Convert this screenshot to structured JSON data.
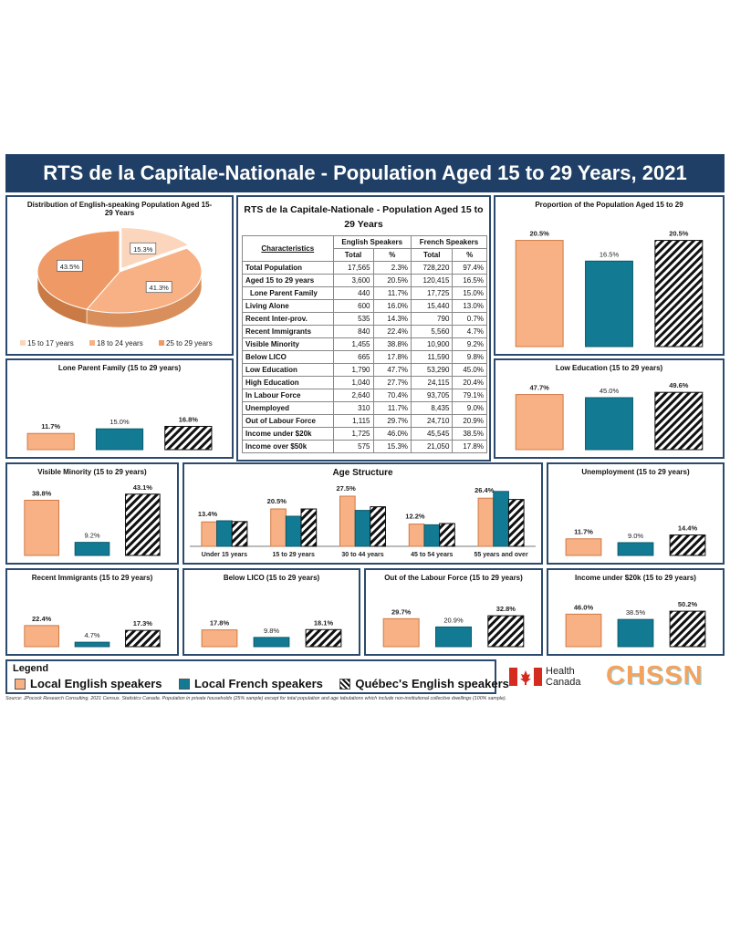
{
  "title": "RTS de la Capitale-Nationale - Population Aged 15 to 29 Years, 2021",
  "colors": {
    "english": "#f7b184",
    "french": "#127a93",
    "quebec": "hatch",
    "frame": "#2c4a6e",
    "header": "#1f3f66"
  },
  "pie": {
    "title": "Distribution of English-speaking  Population Aged 15-29 Years",
    "slices": [
      {
        "label": "15 to 17 years",
        "value": 15.3,
        "display": "15.3%",
        "color": "#fbd6bd"
      },
      {
        "label": "18 to 24 years",
        "value": 41.3,
        "display": "41.3%",
        "color": "#f7b184"
      },
      {
        "label": "25 to 29 years",
        "value": 43.5,
        "display": "43.5%",
        "color": "#ef9a66"
      }
    ]
  },
  "table": {
    "title": "RTS de la Capitale-Nationale - Population Aged 15 to 29 Years",
    "group_headers": [
      "English Speakers",
      "French Speakers"
    ],
    "characteristics_label": "Characteristics",
    "subheaders": [
      "Total",
      "%",
      "Total",
      "%"
    ],
    "rows": [
      {
        "label": "Total Population",
        "en_total": "17,565",
        "en_pct": "2.3%",
        "fr_total": "728,220",
        "fr_pct": "97.4%",
        "indent": false
      },
      {
        "label": "Aged 15 to 29 years",
        "en_total": "3,600",
        "en_pct": "20.5%",
        "fr_total": "120,415",
        "fr_pct": "16.5%",
        "indent": false
      },
      {
        "label": "Lone Parent Family",
        "en_total": "440",
        "en_pct": "11.7%",
        "fr_total": "17,725",
        "fr_pct": "15.0%",
        "indent": true
      },
      {
        "label": "Living Alone",
        "en_total": "600",
        "en_pct": "16.0%",
        "fr_total": "15,440",
        "fr_pct": "13.0%",
        "indent": false
      },
      {
        "label": "Recent Inter-prov.",
        "en_total": "535",
        "en_pct": "14.3%",
        "fr_total": "790",
        "fr_pct": "0.7%",
        "indent": false
      },
      {
        "label": "Recent Immigrants",
        "en_total": "840",
        "en_pct": "22.4%",
        "fr_total": "5,560",
        "fr_pct": "4.7%",
        "indent": false
      },
      {
        "label": "Visible Minority",
        "en_total": "1,455",
        "en_pct": "38.8%",
        "fr_total": "10,900",
        "fr_pct": "9.2%",
        "indent": false
      },
      {
        "label": "Below LICO",
        "en_total": "665",
        "en_pct": "17.8%",
        "fr_total": "11,590",
        "fr_pct": "9.8%",
        "indent": false
      },
      {
        "label": "Low Education",
        "en_total": "1,790",
        "en_pct": "47.7%",
        "fr_total": "53,290",
        "fr_pct": "45.0%",
        "indent": false
      },
      {
        "label": "High Education",
        "en_total": "1,040",
        "en_pct": "27.7%",
        "fr_total": "24,115",
        "fr_pct": "20.4%",
        "indent": false
      },
      {
        "label": "In Labour Force",
        "en_total": "2,640",
        "en_pct": "70.4%",
        "fr_total": "93,705",
        "fr_pct": "79.1%",
        "indent": false
      },
      {
        "label": "Unemployed",
        "en_total": "310",
        "en_pct": "11.7%",
        "fr_total": "8,435",
        "fr_pct": "9.0%",
        "indent": false
      },
      {
        "label": "Out of Labour Force",
        "en_total": "1,115",
        "en_pct": "29.7%",
        "fr_total": "24,710",
        "fr_pct": "20.9%",
        "indent": false
      },
      {
        "label": "Income under $20k",
        "en_total": "1,725",
        "en_pct": "46.0%",
        "fr_total": "45,545",
        "fr_pct": "38.5%",
        "indent": false
      },
      {
        "label": "Income over $50k",
        "en_total": "575",
        "en_pct": "15.3%",
        "fr_total": "21,050",
        "fr_pct": "17.8%",
        "indent": false
      }
    ]
  },
  "chart_data": [
    {
      "id": "proportion",
      "type": "bar",
      "title": "Proportion of the Population  Aged 15 to 29",
      "max": 25,
      "values": [
        20.5,
        16.5,
        20.5
      ],
      "labels": [
        "20.5%",
        "16.5%",
        "20.5%"
      ]
    },
    {
      "id": "lone",
      "type": "bar",
      "title": "Lone Parent Family (15 to 29 years)",
      "max": 50,
      "values": [
        11.7,
        15.0,
        16.8
      ],
      "labels": [
        "11.7%",
        "15.0%",
        "16.8%"
      ]
    },
    {
      "id": "lowedu",
      "type": "bar",
      "title": "Low Education (15 to 29 years)",
      "max": 60,
      "values": [
        47.7,
        45.0,
        49.6
      ],
      "labels": [
        "47.7%",
        "45.0%",
        "49.6%"
      ]
    },
    {
      "id": "vismin",
      "type": "bar",
      "title": "Visible Minority (15 to 29 years)",
      "max": 50,
      "values": [
        38.8,
        9.2,
        43.1
      ],
      "labels": [
        "38.8%",
        "9.2%",
        "43.1%"
      ]
    },
    {
      "id": "unemp",
      "type": "bar",
      "title": "Unemployment (15 to 29 years)",
      "max": 50,
      "values": [
        11.7,
        9.0,
        14.4
      ],
      "labels": [
        "11.7%",
        "9.0%",
        "14.4%"
      ]
    },
    {
      "id": "recimm",
      "type": "bar",
      "title": "Recent Immigrants (15 to 29 years)",
      "max": 60,
      "values": [
        22.4,
        4.7,
        17.3
      ],
      "labels": [
        "22.4%",
        "4.7%",
        "17.3%"
      ]
    },
    {
      "id": "lico",
      "type": "bar",
      "title": "Below LICO (15 to 29 years)",
      "max": 60,
      "values": [
        17.8,
        9.8,
        18.1
      ],
      "labels": [
        "17.8%",
        "9.8%",
        "18.1%"
      ]
    },
    {
      "id": "outlab",
      "type": "bar",
      "title": "Out of the Labour Force (15 to 29 years)",
      "max": 60,
      "values": [
        29.7,
        20.9,
        32.8
      ],
      "labels": [
        "29.7%",
        "20.9%",
        "32.8%"
      ]
    },
    {
      "id": "income",
      "type": "bar",
      "title": "Income under $20k (15 to 29 years)",
      "max": 80,
      "values": [
        46.0,
        38.5,
        50.2
      ],
      "labels": [
        "46.0%",
        "38.5%",
        "50.2%"
      ]
    },
    {
      "id": "age",
      "type": "bar",
      "title": "Age Structure",
      "max": 30,
      "categories": [
        "Under 15 years",
        "15 to 29 years",
        "30 to 44 years",
        "45 to 54 years",
        "55 years and over"
      ],
      "series": [
        {
          "name": "Local English speakers",
          "values": [
            13.4,
            20.5,
            27.5,
            12.2,
            26.4
          ]
        },
        {
          "name": "Local French speakers",
          "values": [
            14.0,
            16.5,
            19.7,
            11.8,
            30.1
          ]
        },
        {
          "name": "Québec's English speakers",
          "values": [
            13.6,
            20.5,
            21.7,
            12.5,
            25.7
          ]
        }
      ],
      "labels": [
        "13.4%",
        "20.5%",
        "27.5%",
        "12.2%",
        "26.4%"
      ]
    }
  ],
  "legend": {
    "title": "Legend",
    "items": [
      "Local English speakers",
      "Local French speakers",
      "Québec's English speakers"
    ]
  },
  "logos": {
    "hc_line1": "Health",
    "hc_line2": "Canada",
    "chssn": "CHSSN"
  },
  "source": "Source: JPocock Research Consulting. 2021 Census. Statistics Canada. Population in private households (25% sample) except for total population and age tabulations which include non-institutional collective dwellings (100% sample)."
}
